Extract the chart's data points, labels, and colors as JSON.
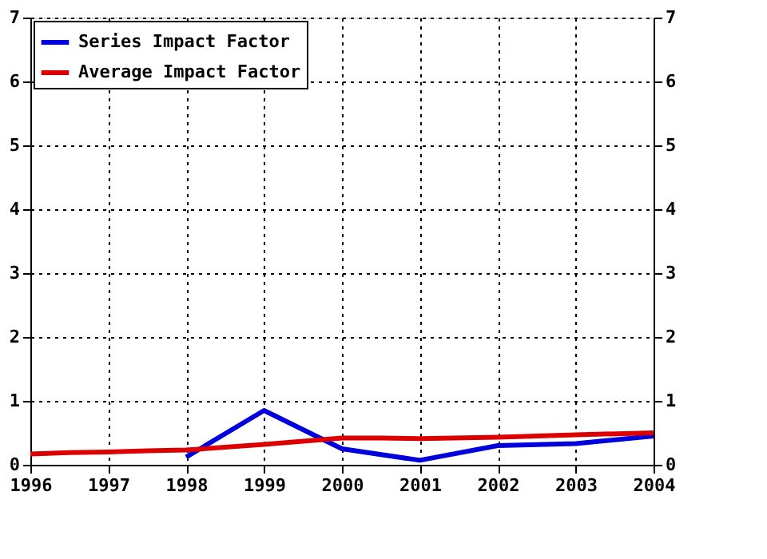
{
  "chart_data": {
    "type": "line",
    "x": [
      1998,
      1999,
      2000,
      2001,
      2002,
      2003,
      2004
    ],
    "xlim": [
      1996,
      2004
    ],
    "xticks": [
      1996,
      1997,
      1998,
      1999,
      2000,
      2001,
      2002,
      2003,
      2004
    ],
    "ylim": [
      0,
      7
    ],
    "yticks": [
      0,
      1,
      2,
      3,
      4,
      5,
      6,
      7
    ],
    "y2lim": [
      0,
      7
    ],
    "y2ticks": [
      0,
      1,
      2,
      3,
      4,
      5,
      6,
      7
    ],
    "series": [
      {
        "name": "Series Impact Factor",
        "color": "#0000dd",
        "values": [
          0.12,
          0.85,
          0.25,
          0.07,
          0.3,
          0.33,
          0.45
        ]
      },
      {
        "name": "Average Impact Factor",
        "color": "#dd0000",
        "axis": "y2",
        "x": [
          1996,
          1996.5,
          1997,
          1997.5,
          1998,
          1999,
          2000,
          2000.5,
          2001,
          2002,
          2003,
          2004
        ],
        "values": [
          0.17,
          0.19,
          0.2,
          0.22,
          0.23,
          0.32,
          0.42,
          0.42,
          0.41,
          0.43,
          0.47,
          0.5
        ]
      }
    ],
    "grid": true,
    "legend": "top left",
    "line_style": "solid",
    "marker": "none"
  }
}
